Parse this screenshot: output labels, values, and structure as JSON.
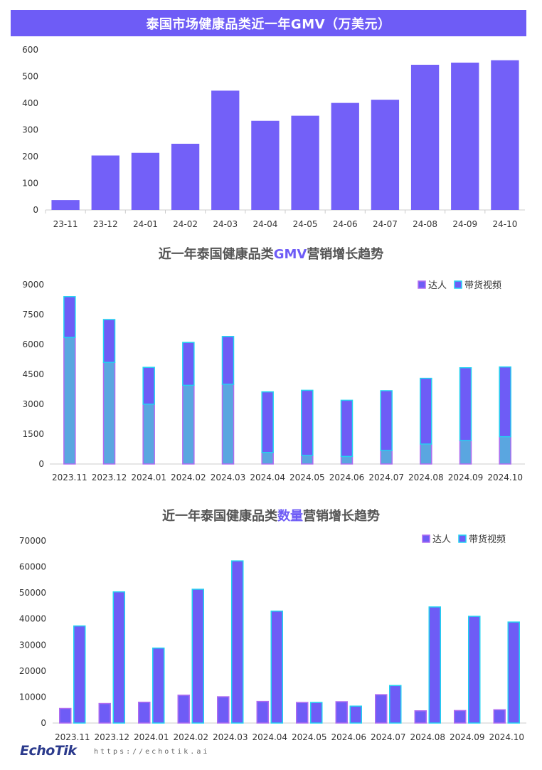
{
  "chart_data": [
    {
      "type": "bar",
      "title": "泰国市场健康品类近一年GMV（万美元）",
      "categories": [
        "23-11",
        "23-12",
        "24-01",
        "24-02",
        "24-03",
        "24-04",
        "24-05",
        "24-06",
        "24-07",
        "24-08",
        "24-09",
        "24-10"
      ],
      "values": [
        37,
        204,
        214,
        248,
        447,
        334,
        353,
        401,
        413,
        544,
        552,
        561
      ],
      "ylim": [
        0,
        600
      ],
      "yticks": [
        0,
        100,
        200,
        300,
        400,
        500,
        600
      ],
      "grid": false,
      "colors": {
        "bar": "#7360f8"
      }
    },
    {
      "type": "bar",
      "stacked": true,
      "title_parts": [
        "近一年泰国健康品类",
        "GMV",
        "营销增长趋势"
      ],
      "categories": [
        "2023.11",
        "2023.12",
        "2024.01",
        "2024.02",
        "2024.03",
        "2024.04",
        "2024.05",
        "2024.06",
        "2024.07",
        "2024.08",
        "2024.09",
        "2024.10"
      ],
      "series": [
        {
          "name": "达人",
          "values": [
            6350,
            5100,
            3000,
            3950,
            4000,
            580,
            430,
            380,
            680,
            1000,
            1180,
            1370
          ]
        },
        {
          "name": "带货视频",
          "values": [
            2050,
            2150,
            1850,
            2150,
            2400,
            3040,
            3270,
            2820,
            3000,
            3300,
            3650,
            3500
          ]
        }
      ],
      "ylim": [
        0,
        9000
      ],
      "yticks": [
        0,
        1500,
        3000,
        4500,
        6000,
        7500,
        9000
      ],
      "legend": "top-right",
      "grid": false,
      "colors": {
        "bottom": "#5aa6e0",
        "top": "#6e5cf6",
        "edge_bottom": "#b06cf0",
        "edge_top": "#22d3f0"
      }
    },
    {
      "type": "bar",
      "title_parts": [
        "近一年泰国健康品类",
        "数量",
        "营销增长趋势"
      ],
      "categories": [
        "2023.11",
        "2023.12",
        "2024.01",
        "2024.02",
        "2024.03",
        "2024.04",
        "2024.05",
        "2024.06",
        "2024.07",
        "2024.08",
        "2024.09",
        "2024.10"
      ],
      "series": [
        {
          "name": "达人",
          "values": [
            5600,
            7500,
            8000,
            10700,
            10100,
            8300,
            7900,
            8200,
            10900,
            4700,
            4800,
            5100
          ]
        },
        {
          "name": "带货视频",
          "values": [
            37300,
            50400,
            28800,
            51400,
            62300,
            43000,
            7900,
            6500,
            14400,
            44600,
            41000,
            38800
          ]
        }
      ],
      "ylim": [
        0,
        70000
      ],
      "yticks": [
        0,
        10000,
        20000,
        30000,
        40000,
        50000,
        60000,
        70000
      ],
      "legend": "top-right",
      "grid": false,
      "colors": {
        "fill": "#6e5cf6",
        "edge_a": "#b06cf0",
        "edge_b": "#22d3f0"
      }
    }
  ],
  "footer": {
    "logo": "EchoTik",
    "url": "https://echotik.ai"
  }
}
